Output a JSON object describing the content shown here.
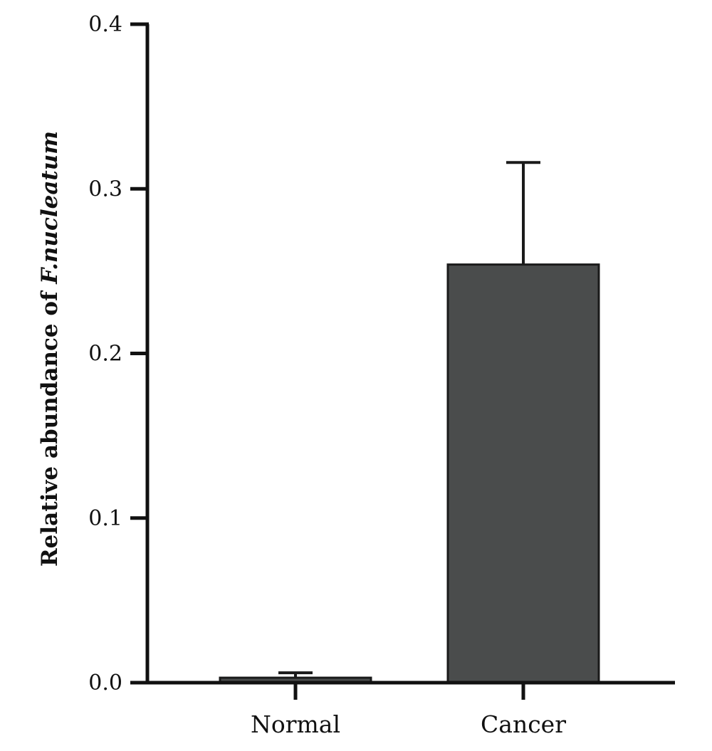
{
  "chart_data": {
    "type": "bar",
    "categories": [
      "Normal",
      "Cancer"
    ],
    "values": [
      0.003,
      0.254
    ],
    "error_upper": [
      0.006,
      0.316
    ],
    "ylabel": "Relative abundance of ",
    "ylabel_italic": "F.nucleatum",
    "ylim": [
      0,
      0.4
    ],
    "yticks": [
      "0.0",
      "0.1",
      "0.2",
      "0.3",
      "0.4"
    ],
    "bar_color": "#4a4c4c",
    "grid": false,
    "legend": "none"
  }
}
